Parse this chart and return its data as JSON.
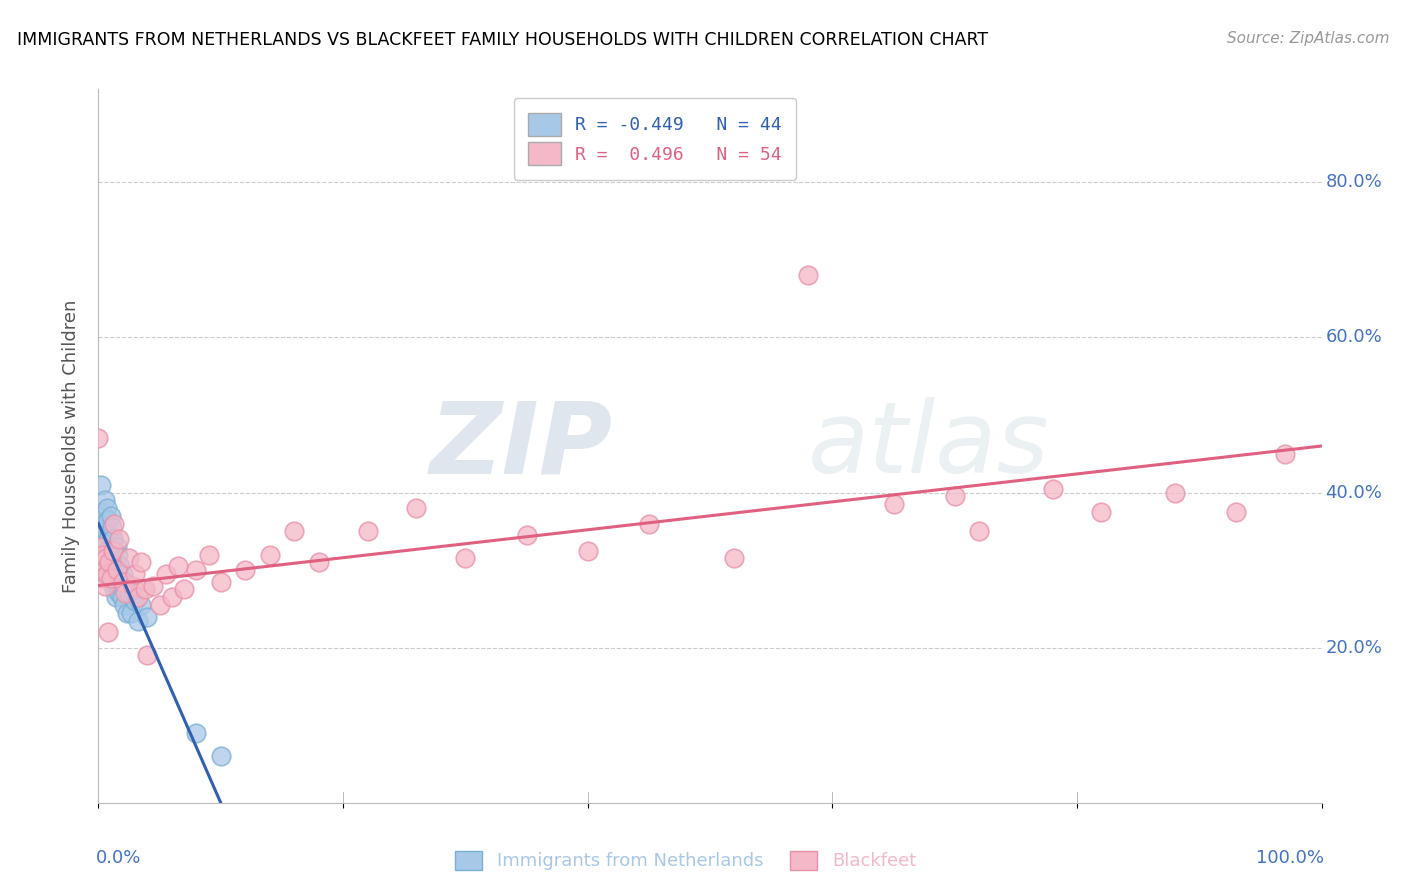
{
  "title": "IMMIGRANTS FROM NETHERLANDS VS BLACKFEET FAMILY HOUSEHOLDS WITH CHILDREN CORRELATION CHART",
  "source": "Source: ZipAtlas.com",
  "ylabel": "Family Households with Children",
  "xlim": [
    0.0,
    1.0
  ],
  "ylim": [
    0.0,
    0.92
  ],
  "yticks": [
    0.2,
    0.4,
    0.6,
    0.8
  ],
  "ytick_labels": [
    "20.0%",
    "40.0%",
    "60.0%",
    "80.0%"
  ],
  "xtick_labels_ends": [
    "0.0%",
    "100.0%"
  ],
  "blue_R": -0.449,
  "blue_N": 44,
  "pink_R": 0.496,
  "pink_N": 54,
  "blue_color": "#a8c8e8",
  "pink_color": "#f4b8c8",
  "blue_edge_color": "#7aafd4",
  "pink_edge_color": "#e890a8",
  "blue_line_color": "#3060b0",
  "pink_line_color": "#e06080",
  "watermark_zip": "ZIP",
  "watermark_atlas": "atlas",
  "legend_label_blue": "Immigrants from Netherlands",
  "legend_label_pink": "Blackfeet",
  "blue_points_x": [
    0.0,
    0.0,
    0.002,
    0.002,
    0.003,
    0.003,
    0.004,
    0.005,
    0.005,
    0.006,
    0.007,
    0.007,
    0.008,
    0.008,
    0.009,
    0.009,
    0.01,
    0.01,
    0.011,
    0.011,
    0.012,
    0.012,
    0.013,
    0.013,
    0.014,
    0.014,
    0.015,
    0.015,
    0.016,
    0.017,
    0.018,
    0.019,
    0.02,
    0.021,
    0.022,
    0.023,
    0.025,
    0.027,
    0.03,
    0.032,
    0.035,
    0.04,
    0.08,
    0.1
  ],
  "blue_points_y": [
    0.295,
    0.32,
    0.41,
    0.355,
    0.375,
    0.31,
    0.36,
    0.39,
    0.33,
    0.35,
    0.38,
    0.325,
    0.365,
    0.305,
    0.345,
    0.295,
    0.37,
    0.315,
    0.355,
    0.3,
    0.34,
    0.285,
    0.325,
    0.275,
    0.31,
    0.265,
    0.33,
    0.28,
    0.32,
    0.27,
    0.305,
    0.265,
    0.295,
    0.255,
    0.285,
    0.245,
    0.27,
    0.245,
    0.26,
    0.235,
    0.255,
    0.24,
    0.09,
    0.06
  ],
  "pink_points_x": [
    0.0,
    0.0,
    0.001,
    0.002,
    0.003,
    0.004,
    0.005,
    0.006,
    0.007,
    0.008,
    0.009,
    0.01,
    0.012,
    0.013,
    0.015,
    0.017,
    0.02,
    0.022,
    0.025,
    0.028,
    0.03,
    0.032,
    0.035,
    0.038,
    0.04,
    0.045,
    0.05,
    0.055,
    0.06,
    0.065,
    0.07,
    0.08,
    0.09,
    0.1,
    0.12,
    0.14,
    0.16,
    0.18,
    0.22,
    0.26,
    0.3,
    0.35,
    0.4,
    0.45,
    0.52,
    0.58,
    0.65,
    0.7,
    0.72,
    0.78,
    0.82,
    0.88,
    0.93,
    0.97
  ],
  "pink_points_y": [
    0.31,
    0.47,
    0.305,
    0.33,
    0.29,
    0.32,
    0.28,
    0.315,
    0.295,
    0.22,
    0.31,
    0.29,
    0.325,
    0.36,
    0.3,
    0.34,
    0.285,
    0.27,
    0.315,
    0.28,
    0.295,
    0.265,
    0.31,
    0.275,
    0.19,
    0.28,
    0.255,
    0.295,
    0.265,
    0.305,
    0.275,
    0.3,
    0.32,
    0.285,
    0.3,
    0.32,
    0.35,
    0.31,
    0.35,
    0.38,
    0.315,
    0.345,
    0.325,
    0.36,
    0.315,
    0.68,
    0.385,
    0.395,
    0.35,
    0.405,
    0.375,
    0.4,
    0.375,
    0.45
  ],
  "blue_line_x": [
    0.0,
    0.1
  ],
  "blue_line_y_start": 0.36,
  "blue_line_y_end": 0.0,
  "pink_line_x": [
    0.0,
    1.0
  ],
  "pink_line_y_start": 0.28,
  "pink_line_y_end": 0.46
}
